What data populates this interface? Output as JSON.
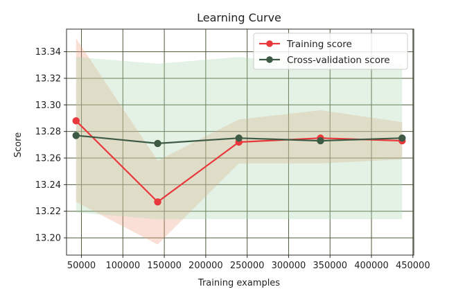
{
  "chart_data": {
    "type": "line",
    "title": "Learning Curve",
    "xlabel": "Training examples",
    "ylabel": "Score",
    "xlim": [
      32000,
      451000
    ],
    "ylim": [
      13.187,
      13.357
    ],
    "xticks": [
      50000,
      100000,
      150000,
      200000,
      250000,
      300000,
      350000,
      400000,
      450000
    ],
    "xtick_labels": [
      "50000",
      "100000",
      "150000",
      "200000",
      "250000",
      "300000",
      "350000",
      "400000",
      "450000"
    ],
    "yticks": [
      13.2,
      13.22,
      13.24,
      13.26,
      13.28,
      13.3,
      13.32,
      13.34
    ],
    "ytick_labels": [
      "13.20",
      "13.22",
      "13.24",
      "13.26",
      "13.28",
      "13.30",
      "13.32",
      "13.34"
    ],
    "grid": true,
    "legend_position": "top-right",
    "x": [
      43500,
      142000,
      240000,
      338500,
      437000
    ],
    "series": [
      {
        "name": "Training score",
        "color": "#e8383b",
        "band_color": "#ef9a7e",
        "values": [
          13.288,
          13.227,
          13.272,
          13.275,
          13.273
        ],
        "band_lower": [
          13.227,
          13.195,
          13.256,
          13.256,
          13.259
        ],
        "band_upper": [
          13.35,
          13.258,
          13.289,
          13.296,
          13.287
        ]
      },
      {
        "name": "Cross-validation score",
        "color": "#3d5a45",
        "band_color": "#a8d8ab",
        "values": [
          13.277,
          13.271,
          13.275,
          13.273,
          13.275
        ],
        "band_lower": [
          13.219,
          13.214,
          13.214,
          13.214,
          13.214
        ],
        "band_upper": [
          13.336,
          13.331,
          13.336,
          13.331,
          13.331
        ]
      }
    ]
  }
}
